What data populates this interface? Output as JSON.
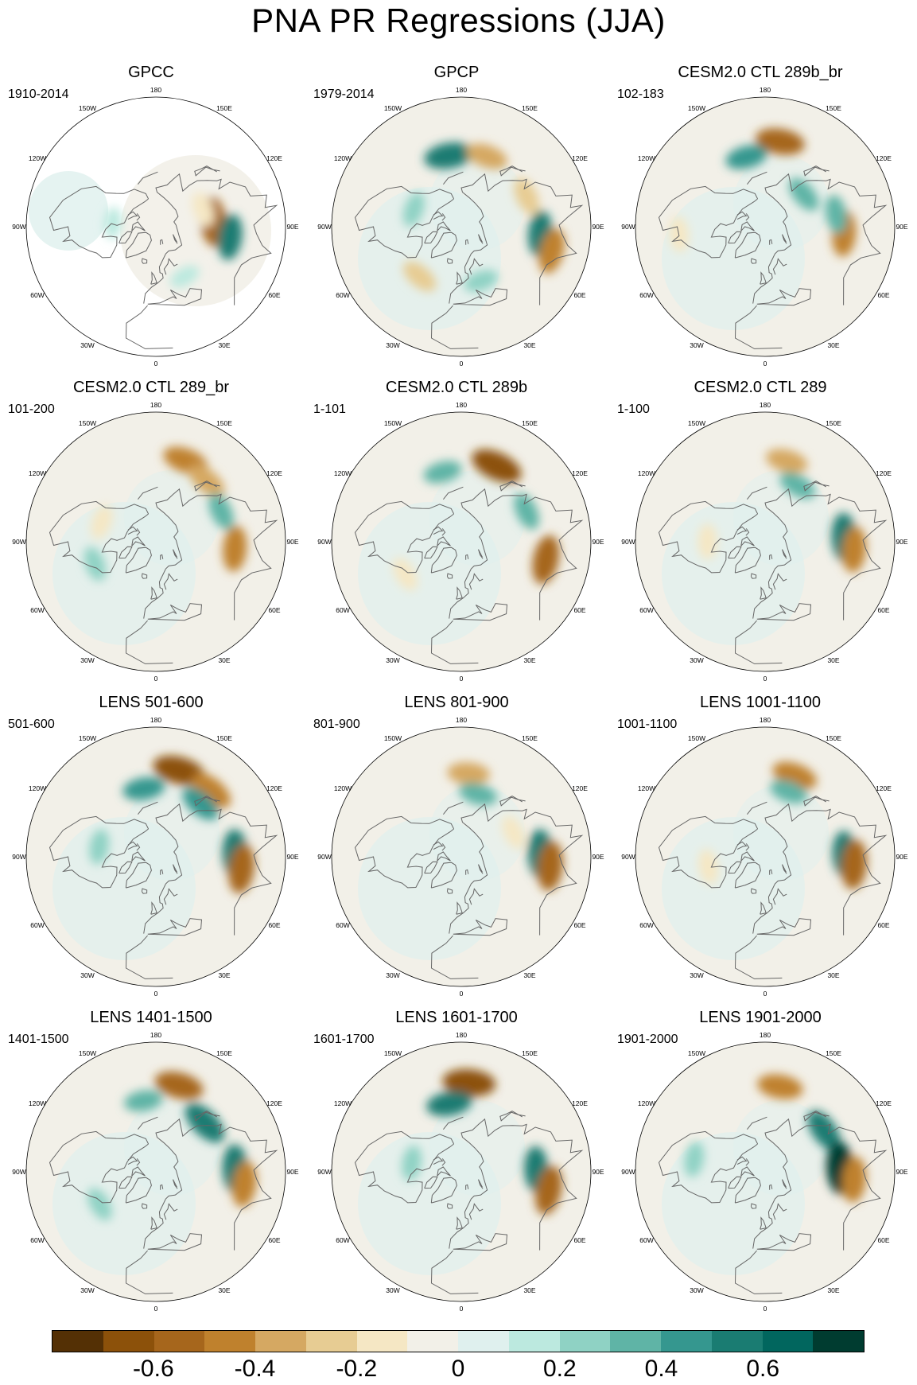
{
  "title": "PNA PR Regressions (JJA)",
  "lon_labels": [
    "180",
    "150E",
    "120E",
    "90E",
    "60E",
    "30E",
    "0",
    "30W",
    "60W",
    "90W",
    "120W",
    "150W"
  ],
  "panels": [
    {
      "title": "GPCC",
      "period": "1910-2014",
      "blobs": [
        {
          "lat": 50,
          "lon": 95,
          "v": -0.6
        },
        {
          "lat": 38,
          "lon": 82,
          "v": 0.5
        },
        {
          "lat": 55,
          "lon": 110,
          "v": -0.2
        },
        {
          "lat": 60,
          "lon": -95,
          "v": 0.1
        },
        {
          "lat": 50,
          "lon": 30,
          "v": 0.1
        }
      ],
      "land_only": true
    },
    {
      "title": "GPCP",
      "period": "1979-2014",
      "blobs": [
        {
          "lat": 40,
          "lon": -170,
          "v": 0.6
        },
        {
          "lat": 38,
          "lon": 160,
          "v": -0.4
        },
        {
          "lat": 40,
          "lon": 115,
          "v": -0.3
        },
        {
          "lat": 35,
          "lon": 85,
          "v": 0.5
        },
        {
          "lat": 25,
          "lon": 75,
          "v": -0.5
        },
        {
          "lat": 55,
          "lon": -110,
          "v": 0.2
        },
        {
          "lat": 45,
          "lon": -40,
          "v": -0.3
        },
        {
          "lat": 50,
          "lon": 20,
          "v": 0.2
        }
      ]
    },
    {
      "title": "CESM2.0 CTL 289b_br",
      "period": "102-183",
      "blobs": [
        {
          "lat": 30,
          "lon": 170,
          "v": -0.6
        },
        {
          "lat": 40,
          "lon": -165,
          "v": 0.4
        },
        {
          "lat": 55,
          "lon": 130,
          "v": 0.3
        },
        {
          "lat": 35,
          "lon": 85,
          "v": -0.5
        },
        {
          "lat": 40,
          "lon": 100,
          "v": 0.3
        },
        {
          "lat": 30,
          "lon": -85,
          "v": -0.2
        }
      ]
    },
    {
      "title": "CESM2.0 CTL 289_br",
      "period": "101-200",
      "blobs": [
        {
          "lat": 30,
          "lon": 160,
          "v": -0.5
        },
        {
          "lat": 35,
          "lon": 140,
          "v": -0.4
        },
        {
          "lat": 40,
          "lon": 115,
          "v": 0.3
        },
        {
          "lat": 35,
          "lon": 85,
          "v": -0.5
        },
        {
          "lat": 50,
          "lon": -110,
          "v": -0.2
        },
        {
          "lat": 45,
          "lon": -70,
          "v": 0.2
        }
      ]
    },
    {
      "title": "CESM2.0 CTL 289b",
      "period": "1-101",
      "blobs": [
        {
          "lat": 32,
          "lon": 155,
          "v": -0.7
        },
        {
          "lat": 40,
          "lon": -165,
          "v": 0.3
        },
        {
          "lat": 40,
          "lon": 115,
          "v": 0.3
        },
        {
          "lat": 30,
          "lon": 78,
          "v": -0.6
        },
        {
          "lat": 45,
          "lon": -60,
          "v": -0.2
        }
      ]
    },
    {
      "title": "CESM2.0 CTL 289",
      "period": "1-100",
      "blobs": [
        {
          "lat": 32,
          "lon": 165,
          "v": -0.4
        },
        {
          "lat": 45,
          "lon": 150,
          "v": 0.3
        },
        {
          "lat": 35,
          "lon": 93,
          "v": 0.6
        },
        {
          "lat": 28,
          "lon": 85,
          "v": -0.5
        },
        {
          "lat": 50,
          "lon": -90,
          "v": -0.2
        }
      ]
    },
    {
      "title": "LENS 501-600",
      "period": "501-600",
      "blobs": [
        {
          "lat": 28,
          "lon": 165,
          "v": -0.7
        },
        {
          "lat": 30,
          "lon": 140,
          "v": -0.5
        },
        {
          "lat": 42,
          "lon": -170,
          "v": 0.4
        },
        {
          "lat": 42,
          "lon": 140,
          "v": 0.4
        },
        {
          "lat": 35,
          "lon": 92,
          "v": 0.6
        },
        {
          "lat": 30,
          "lon": 82,
          "v": -0.6
        },
        {
          "lat": 50,
          "lon": -100,
          "v": 0.2
        }
      ]
    },
    {
      "title": "LENS 801-900",
      "period": "801-900",
      "blobs": [
        {
          "lat": 32,
          "lon": 175,
          "v": -0.4
        },
        {
          "lat": 45,
          "lon": 165,
          "v": 0.3
        },
        {
          "lat": 35,
          "lon": 92,
          "v": 0.6
        },
        {
          "lat": 28,
          "lon": 84,
          "v": -0.6
        },
        {
          "lat": 50,
          "lon": 115,
          "v": -0.2
        }
      ]
    },
    {
      "title": "LENS 1001-1100",
      "period": "1001-1100",
      "blobs": [
        {
          "lat": 30,
          "lon": 160,
          "v": -0.5
        },
        {
          "lat": 42,
          "lon": 160,
          "v": 0.3
        },
        {
          "lat": 35,
          "lon": 92,
          "v": 0.5
        },
        {
          "lat": 28,
          "lon": 85,
          "v": -0.6
        },
        {
          "lat": 50,
          "lon": -80,
          "v": -0.2
        }
      ]
    },
    {
      "title": "LENS 1401-1500",
      "period": "1401-1500",
      "blobs": [
        {
          "lat": 28,
          "lon": 165,
          "v": -0.6
        },
        {
          "lat": 42,
          "lon": 135,
          "v": 0.6
        },
        {
          "lat": 35,
          "lon": 92,
          "v": 0.6
        },
        {
          "lat": 28,
          "lon": 82,
          "v": -0.5
        },
        {
          "lat": 40,
          "lon": -170,
          "v": 0.3
        },
        {
          "lat": 45,
          "lon": -60,
          "v": 0.2
        }
      ]
    },
    {
      "title": "LENS 1601-1700",
      "period": "1601-1700",
      "blobs": [
        {
          "lat": 28,
          "lon": 175,
          "v": -0.7
        },
        {
          "lat": 42,
          "lon": -170,
          "v": 0.5
        },
        {
          "lat": 38,
          "lon": 92,
          "v": 0.5
        },
        {
          "lat": 28,
          "lon": 78,
          "v": -0.6
        },
        {
          "lat": 55,
          "lon": -100,
          "v": 0.2
        }
      ]
    },
    {
      "title": "LENS 1901-2000",
      "period": "1901-2000",
      "blobs": [
        {
          "lat": 30,
          "lon": 170,
          "v": -0.5
        },
        {
          "lat": 40,
          "lon": 125,
          "v": 0.5
        },
        {
          "lat": 38,
          "lon": 93,
          "v": 0.7
        },
        {
          "lat": 28,
          "lon": 85,
          "v": -0.5
        },
        {
          "lat": 40,
          "lon": -100,
          "v": 0.2
        }
      ]
    }
  ],
  "colorbar": {
    "colors": [
      "#543005",
      "#8c510a",
      "#a6661c",
      "#bf812d",
      "#d5a862",
      "#e7cc93",
      "#f5e7c4",
      "#f2f0e8",
      "#dff0ee",
      "#bce9df",
      "#8fd2c4",
      "#5fb4a6",
      "#35978f",
      "#1a7c72",
      "#01665e",
      "#003c30"
    ],
    "ticks": [
      "-0.6",
      "-0.4",
      "-0.2",
      "0",
      "0.2",
      "0.4",
      "0.6"
    ],
    "tick_values": [
      -0.6,
      -0.4,
      -0.2,
      0,
      0.2,
      0.4,
      0.6
    ],
    "range": [
      -0.8,
      0.8
    ]
  }
}
